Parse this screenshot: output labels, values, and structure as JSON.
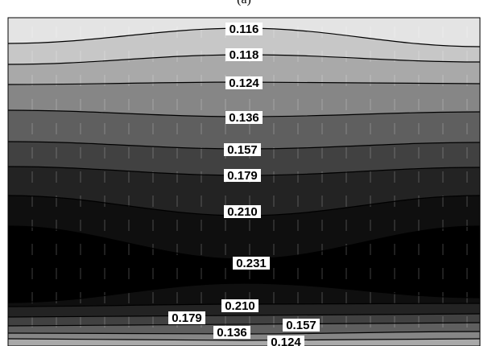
{
  "chart_data": {
    "type": "contour",
    "title": "(a)",
    "xlabel": "",
    "ylabel": "",
    "grid": true,
    "colormap": "grayscale, light at low values, black at high values",
    "contour_levels": [
      0.116,
      0.118,
      0.124,
      0.136,
      0.157,
      0.179,
      0.21,
      0.231
    ],
    "level_colors": [
      "#e4e4e4",
      "#c7c7c7",
      "#a9a9a9",
      "#868686",
      "#5f5f5f",
      "#414141",
      "#232323",
      "#0f0f0f",
      "#000000"
    ],
    "contour_labels": [
      {
        "text": "0.116"
      },
      {
        "text": "0.118"
      },
      {
        "text": "0.124"
      },
      {
        "text": "0.136"
      },
      {
        "text": "0.157"
      },
      {
        "text": "0.179"
      },
      {
        "text": "0.210"
      },
      {
        "text": "0.231"
      },
      {
        "text": "0.210"
      },
      {
        "text": "0.179"
      },
      {
        "text": "0.157"
      },
      {
        "text": "0.136"
      },
      {
        "text": "0.124"
      }
    ]
  }
}
